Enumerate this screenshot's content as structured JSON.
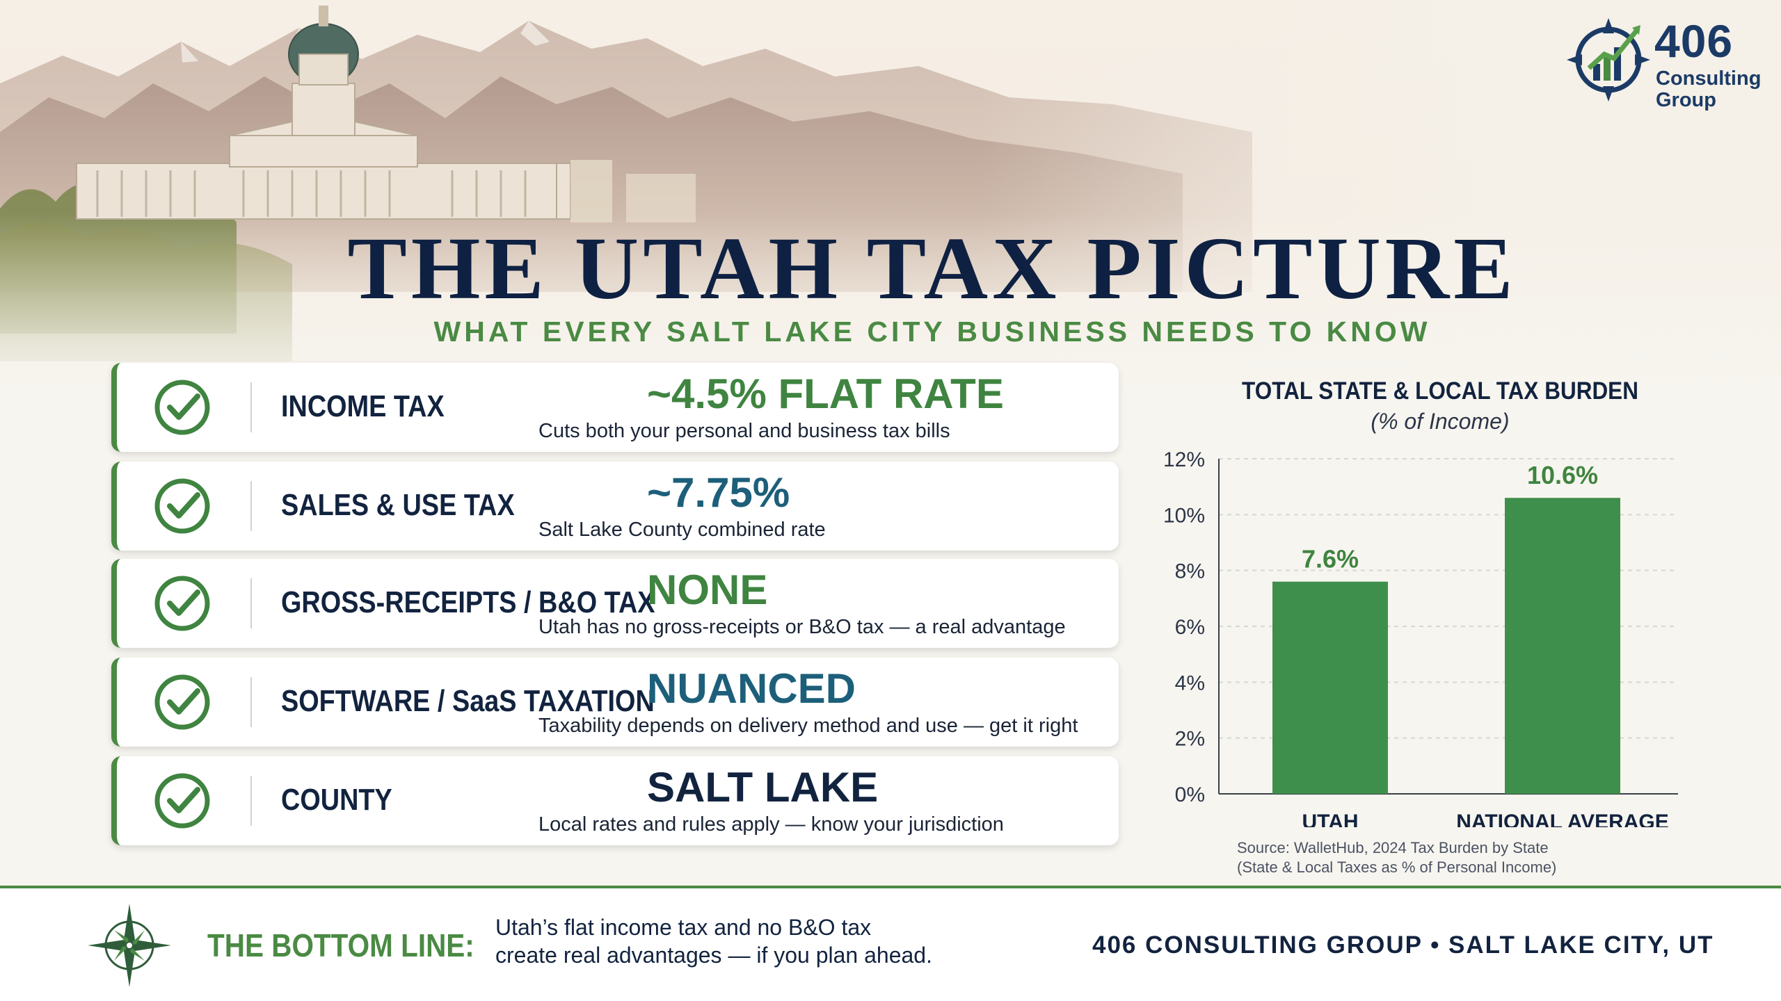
{
  "colors": {
    "navy": "#12233f",
    "green": "#4a8a43",
    "teal": "#1d5f7a",
    "chart_bar": "#3f8f4c"
  },
  "logo": {
    "number": "406",
    "line1": "Consulting",
    "line2": "Group",
    "icon": "compass-growth-chart-icon"
  },
  "header": {
    "title": "THE UTAH TAX PICTURE",
    "subtitle": "WHAT EVERY SALT LAKE CITY BUSINESS NEEDS TO KNOW"
  },
  "tax_items": [
    {
      "label": "INCOME TAX",
      "value": "~4.5% FLAT RATE",
      "value_color": "#3f8440",
      "description": "Cuts both your personal and business tax bills",
      "icon": "check-circle-icon"
    },
    {
      "label": "SALES & USE TAX",
      "value": "~7.75%",
      "value_color": "#1d5f7a",
      "description": "Salt Lake County combined rate",
      "icon": "check-circle-icon"
    },
    {
      "label": "GROSS-RECEIPTS / B&O TAX",
      "value": "NONE",
      "value_color": "#3f8440",
      "description": "Utah has no gross-receipts or B&O tax — a real advantage",
      "icon": "check-circle-icon"
    },
    {
      "label": "SOFTWARE / SaaS TAXATION",
      "value": "NUANCED",
      "value_color": "#1d5f7a",
      "description": "Taxability depends on delivery method and use — get it right",
      "icon": "check-circle-icon"
    },
    {
      "label": "COUNTY",
      "value": "SALT LAKE",
      "value_color": "#12233f",
      "description": "Local rates and rules apply — know your jurisdiction",
      "icon": "check-circle-icon"
    }
  ],
  "chart_data": {
    "type": "bar",
    "title": "TOTAL STATE & LOCAL TAX BURDEN",
    "subtitle": "(% of Income)",
    "categories": [
      "UTAH",
      "NATIONAL AVERAGE"
    ],
    "values": [
      7.6,
      10.6
    ],
    "data_labels": [
      "7.6%",
      "10.6%"
    ],
    "ylim": [
      0,
      12
    ],
    "yticks": [
      "0%",
      "2%",
      "4%",
      "6%",
      "8%",
      "10%",
      "12%"
    ],
    "ytick_values": [
      0,
      2,
      4,
      6,
      8,
      10,
      12
    ],
    "grid": true,
    "legend": "none",
    "source_line1": "Source: WalletHub, 2024 Tax Burden by State",
    "source_line2": "(State & Local Taxes as % of Personal Income)"
  },
  "footer": {
    "icon": "compass-rose-icon",
    "bottom_line_label": "THE BOTTOM LINE:",
    "bottom_line_text1": "Utah’s flat income tax and no B&O tax",
    "bottom_line_text2": "create real advantages — if you plan ahead.",
    "brand": "406 CONSULTING GROUP • SALT LAKE CITY, UT"
  }
}
